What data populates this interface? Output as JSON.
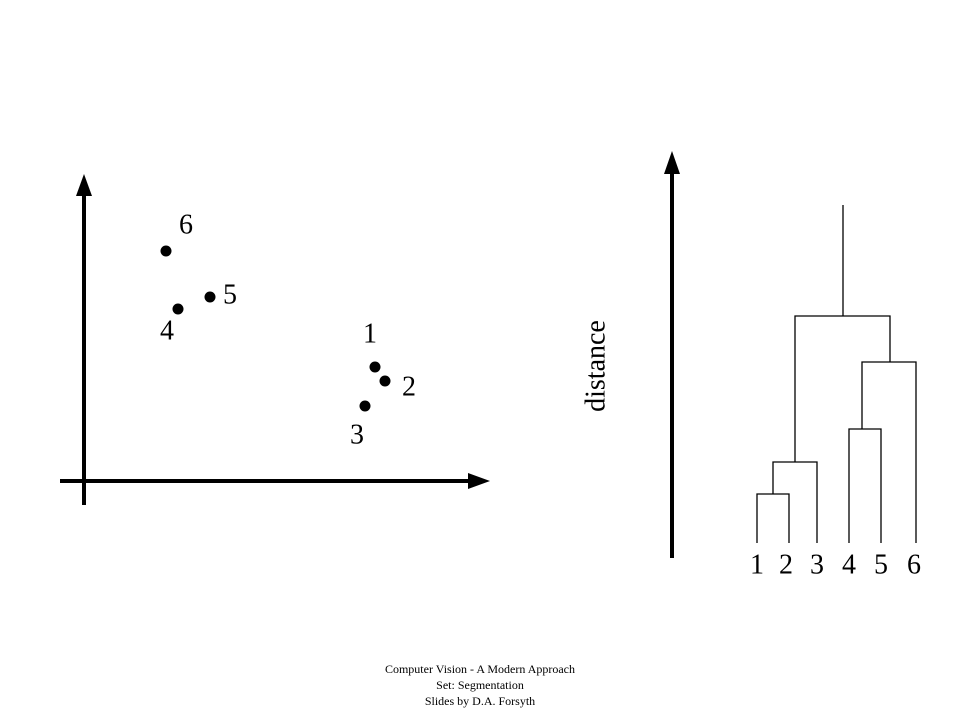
{
  "scatter": {
    "points": [
      {
        "label": "1"
      },
      {
        "label": "2"
      },
      {
        "label": "3"
      },
      {
        "label": "4"
      },
      {
        "label": "5"
      },
      {
        "label": "6"
      }
    ]
  },
  "dendrogram": {
    "axis_label": "distance",
    "leaves": [
      "1",
      "2",
      "3",
      "4",
      "5",
      "6"
    ]
  },
  "footer": {
    "lines": [
      "Computer Vision - A Modern Approach",
      "Set:  Segmentation",
      "Slides by D.A.  Forsyth"
    ]
  }
}
